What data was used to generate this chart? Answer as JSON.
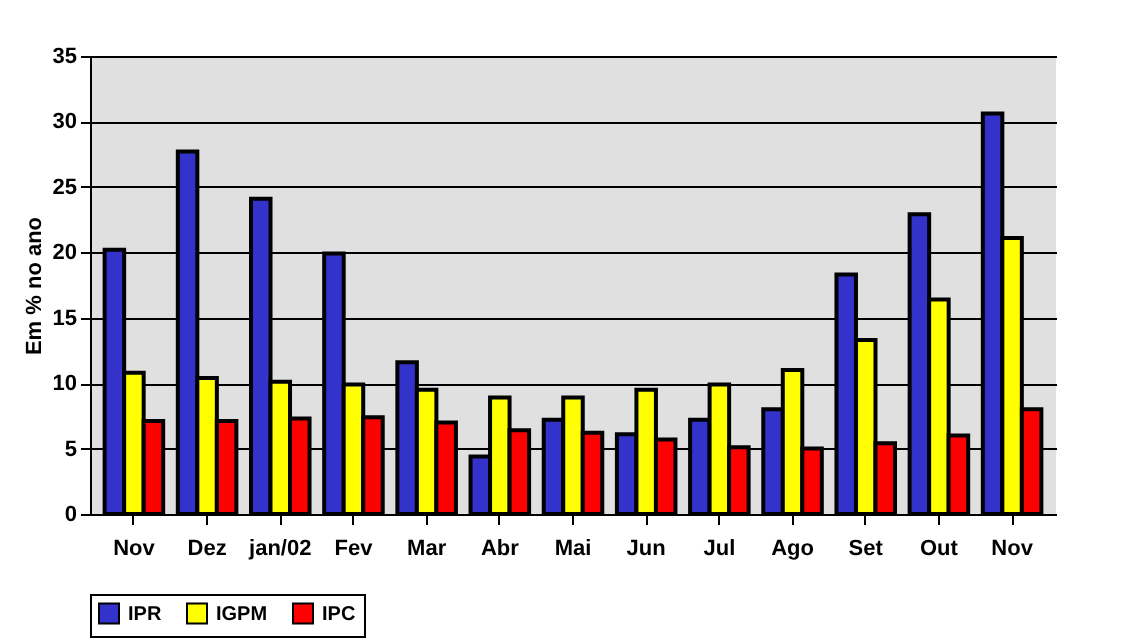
{
  "chart_data": {
    "type": "bar",
    "ylabel": "Em % no ano",
    "categories": [
      "Nov",
      "Dez",
      "jan/02",
      "Fev",
      "Mar",
      "Abr",
      "Mai",
      "Jun",
      "Jul",
      "Ago",
      "Set",
      "Out",
      "Nov"
    ],
    "series": [
      {
        "name": "IPR",
        "color": "#3333cc",
        "values": [
          20.2,
          27.7,
          24.1,
          19.9,
          11.6,
          4.4,
          7.2,
          6.1,
          7.2,
          8.0,
          18.3,
          22.9,
          30.6
        ]
      },
      {
        "name": "IGPM",
        "color": "#ffff00",
        "values": [
          10.8,
          10.4,
          10.1,
          9.9,
          9.5,
          8.9,
          8.9,
          9.5,
          9.9,
          11.0,
          13.3,
          16.4,
          21.1
        ]
      },
      {
        "name": "IPC",
        "color": "#ff0000",
        "values": [
          7.1,
          7.1,
          7.3,
          7.4,
          7.0,
          6.4,
          6.2,
          5.7,
          5.1,
          5.0,
          5.4,
          6.0,
          8.0
        ]
      }
    ],
    "ylim": [
      0,
      35
    ],
    "yticks": [
      0,
      5,
      10,
      15,
      20,
      25,
      30,
      35
    ],
    "grid": "y",
    "legend": "bottom"
  }
}
